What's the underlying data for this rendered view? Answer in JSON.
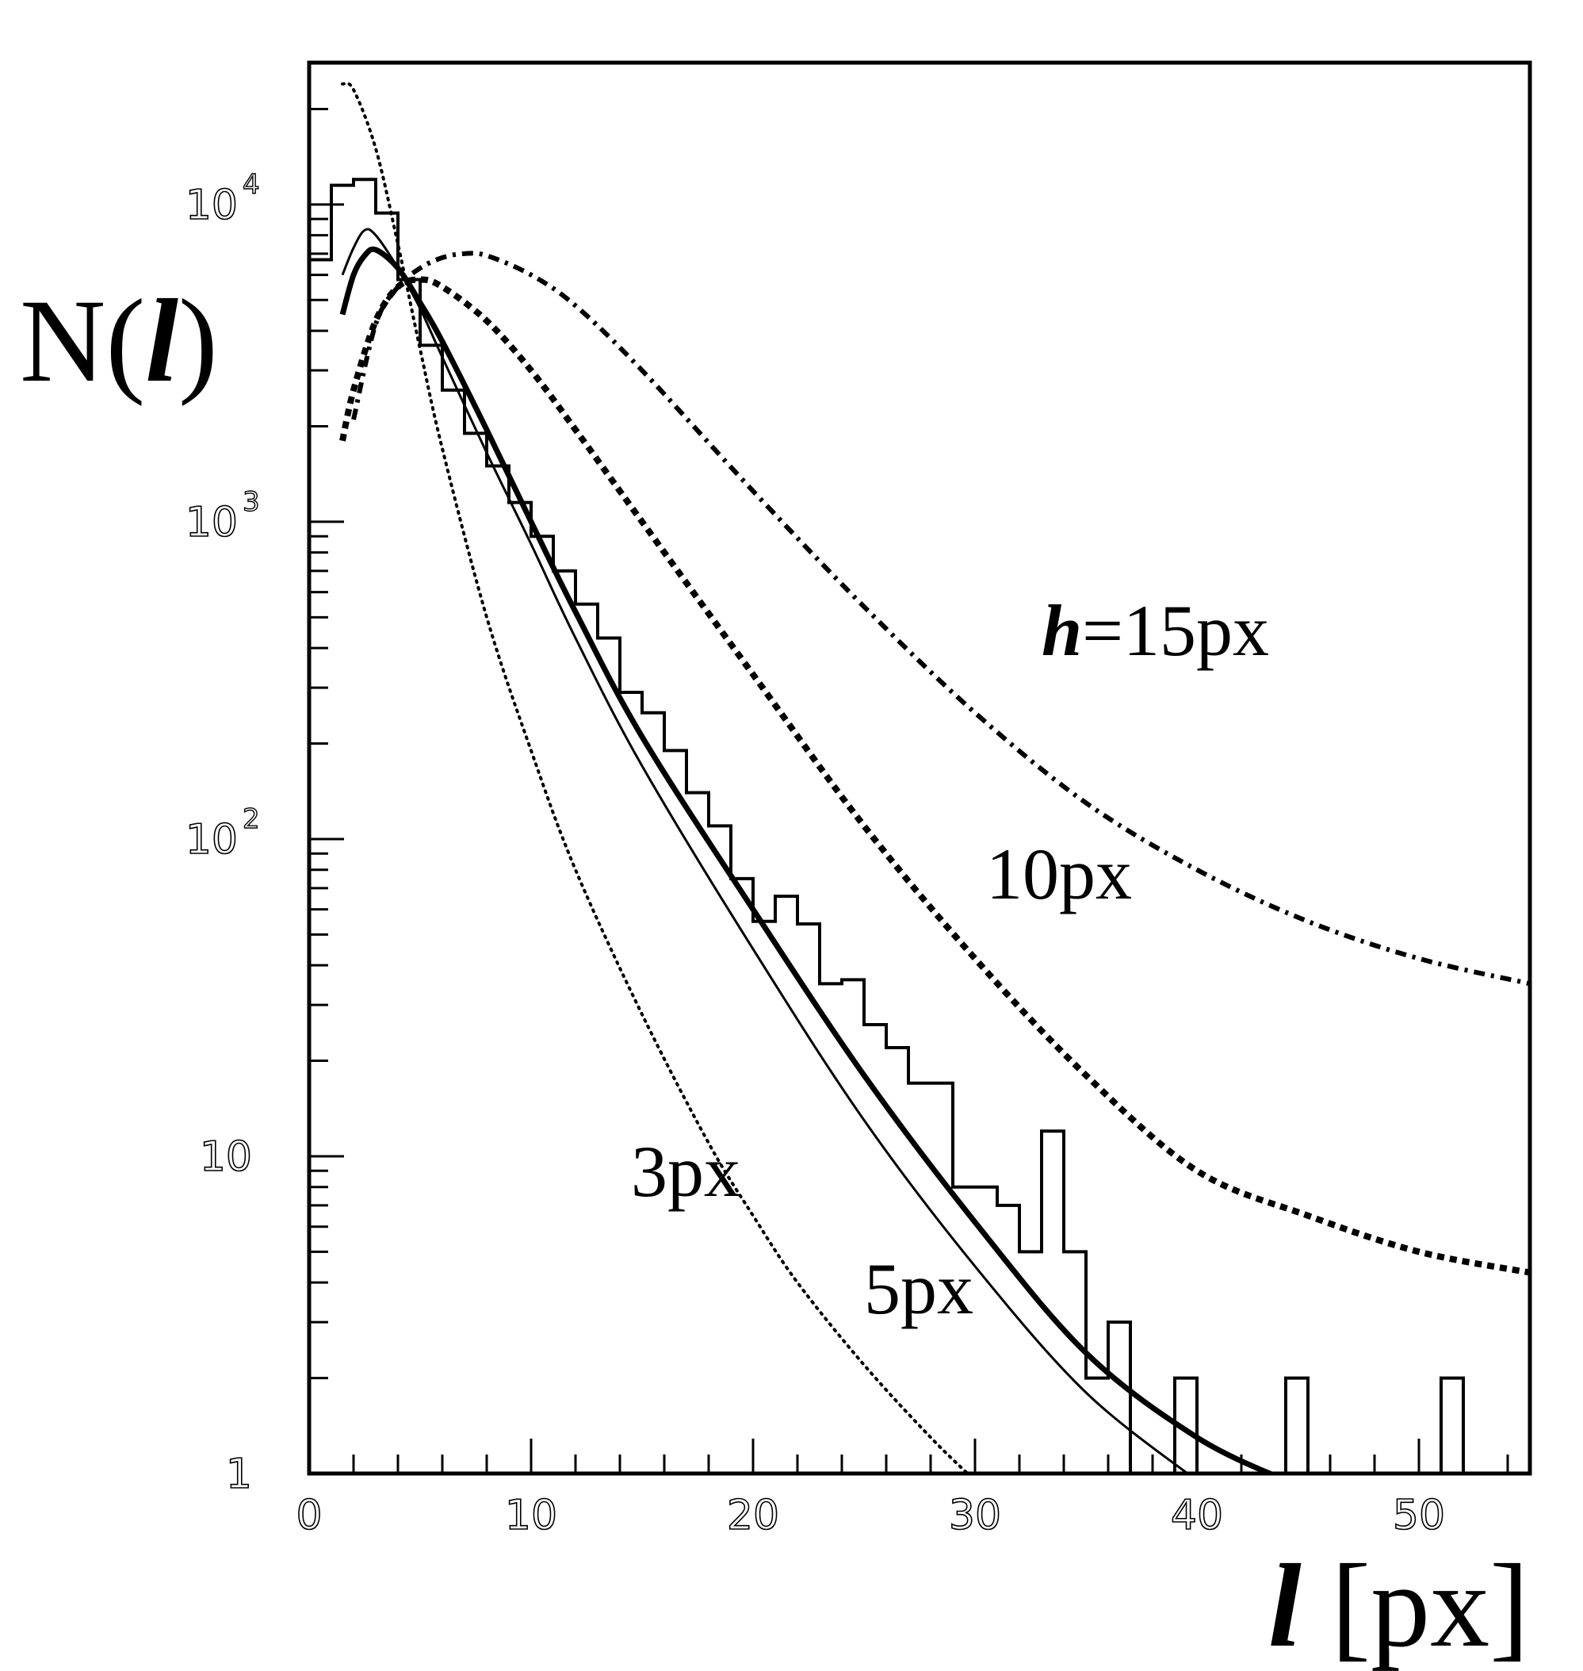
{
  "chart_data": {
    "type": "line",
    "title": "",
    "ylabel": {
      "prefix": "N(",
      "symbol": "l",
      "suffix": ")"
    },
    "xlabel": {
      "symbol": "l",
      "unit": " [px]"
    },
    "xlim": [
      0,
      55
    ],
    "ylim": [
      1,
      28000
    ],
    "yscale": "log",
    "grid": false,
    "x_ticks": [
      {
        "value": 0,
        "label": "0"
      },
      {
        "value": 10,
        "label": "10"
      },
      {
        "value": 20,
        "label": "20"
      },
      {
        "value": 30,
        "label": "30"
      },
      {
        "value": 40,
        "label": "40"
      },
      {
        "value": 50,
        "label": "50"
      }
    ],
    "y_ticks": [
      {
        "value": 1,
        "label": "1",
        "sup": ""
      },
      {
        "value": 10,
        "label": "10",
        "sup": ""
      },
      {
        "value": 100,
        "label": "10",
        "sup": "2"
      },
      {
        "value": 1000,
        "label": "10",
        "sup": "3"
      },
      {
        "value": 10000,
        "label": "10",
        "sup": "4"
      }
    ],
    "histogram": {
      "bin_width": 1,
      "bins": [
        {
          "x": 0,
          "y": 6700
        },
        {
          "x": 1,
          "y": 11500
        },
        {
          "x": 2,
          "y": 12000
        },
        {
          "x": 3,
          "y": 9400
        },
        {
          "x": 4,
          "y": 5800
        },
        {
          "x": 5,
          "y": 3600
        },
        {
          "x": 6,
          "y": 2600
        },
        {
          "x": 7,
          "y": 1900
        },
        {
          "x": 8,
          "y": 1500
        },
        {
          "x": 9,
          "y": 1150
        },
        {
          "x": 10,
          "y": 900
        },
        {
          "x": 11,
          "y": 700
        },
        {
          "x": 12,
          "y": 550
        },
        {
          "x": 13,
          "y": 430
        },
        {
          "x": 14,
          "y": 290
        },
        {
          "x": 15,
          "y": 250
        },
        {
          "x": 16,
          "y": 190
        },
        {
          "x": 17,
          "y": 140
        },
        {
          "x": 18,
          "y": 110
        },
        {
          "x": 19,
          "y": 75
        },
        {
          "x": 20,
          "y": 55
        },
        {
          "x": 21,
          "y": 66
        },
        {
          "x": 22,
          "y": 54
        },
        {
          "x": 23,
          "y": 35
        },
        {
          "x": 24,
          "y": 36
        },
        {
          "x": 25,
          "y": 26
        },
        {
          "x": 26,
          "y": 22
        },
        {
          "x": 27,
          "y": 17
        },
        {
          "x": 28,
          "y": 17
        },
        {
          "x": 29,
          "y": 8
        },
        {
          "x": 30,
          "y": 8
        },
        {
          "x": 31,
          "y": 7
        },
        {
          "x": 32,
          "y": 5
        },
        {
          "x": 33,
          "y": 12
        },
        {
          "x": 34,
          "y": 5
        },
        {
          "x": 35,
          "y": 2
        },
        {
          "x": 36,
          "y": 3
        },
        {
          "x": 37,
          "y": 1
        },
        {
          "x": 38,
          "y": 1
        },
        {
          "x": 39,
          "y": 2
        },
        {
          "x": 40,
          "y": 1
        },
        {
          "x": 41,
          "y": 1
        },
        {
          "x": 42,
          "y": 1
        },
        {
          "x": 43,
          "y": 1
        },
        {
          "x": 44,
          "y": 2
        },
        {
          "x": 45,
          "y": 1
        },
        {
          "x": 46,
          "y": 1
        },
        {
          "x": 47,
          "y": 1
        },
        {
          "x": 48,
          "y": 1
        },
        {
          "x": 49,
          "y": 1
        },
        {
          "x": 50,
          "y": 1
        },
        {
          "x": 51,
          "y": 2
        }
      ]
    },
    "series": [
      {
        "label": "3px",
        "style": "dotted-thin",
        "points": [
          [
            1.5,
            24000
          ],
          [
            2,
            23000
          ],
          [
            3,
            15000
          ],
          [
            4,
            7500
          ],
          [
            5,
            3500
          ],
          [
            6,
            1700
          ],
          [
            8,
            500
          ],
          [
            10,
            190
          ],
          [
            12,
            80
          ],
          [
            15,
            28
          ],
          [
            18,
            11
          ],
          [
            20,
            6.5
          ],
          [
            22,
            4.0
          ],
          [
            25,
            2.2
          ],
          [
            28,
            1.3
          ],
          [
            30,
            0.95
          ]
        ]
      },
      {
        "label": "5px",
        "style": "solid-thin",
        "points": [
          [
            1.5,
            6000
          ],
          [
            2,
            7300
          ],
          [
            2.5,
            8300
          ],
          [
            3,
            8000
          ],
          [
            4,
            6300
          ],
          [
            5,
            4700
          ],
          [
            6,
            3300
          ],
          [
            8,
            1650
          ],
          [
            10,
            850
          ],
          [
            12,
            430
          ],
          [
            15,
            170
          ],
          [
            20,
            45
          ],
          [
            25,
            13
          ],
          [
            30,
            4.5
          ],
          [
            35,
            1.8
          ],
          [
            40,
            0.95
          ]
        ]
      },
      {
        "label": "",
        "style": "solid-thick",
        "points": [
          [
            1.5,
            4500
          ],
          [
            2,
            6000
          ],
          [
            2.5,
            6900
          ],
          [
            3,
            7200
          ],
          [
            4,
            6300
          ],
          [
            5,
            4900
          ],
          [
            6,
            3700
          ],
          [
            8,
            1950
          ],
          [
            10,
            1000
          ],
          [
            12,
            520
          ],
          [
            15,
            210
          ],
          [
            20,
            60
          ],
          [
            25,
            18
          ],
          [
            30,
            6.2
          ],
          [
            35,
            2.4
          ],
          [
            40,
            1.3
          ],
          [
            44,
            0.95
          ]
        ]
      },
      {
        "label": "10px",
        "style": "dashed-thick",
        "points": [
          [
            1.5,
            1800
          ],
          [
            2,
            2600
          ],
          [
            3,
            4300
          ],
          [
            4,
            5500
          ],
          [
            5,
            5800
          ],
          [
            6,
            5500
          ],
          [
            8,
            4300
          ],
          [
            10,
            3000
          ],
          [
            12,
            1950
          ],
          [
            15,
            1000
          ],
          [
            20,
            330
          ],
          [
            25,
            110
          ],
          [
            30,
            42
          ],
          [
            35,
            18
          ],
          [
            40,
            9
          ],
          [
            45,
            6.5
          ],
          [
            50,
            5.0
          ],
          [
            55,
            4.3
          ]
        ]
      },
      {
        "label": "h=15px",
        "style": "dash-dot-thick",
        "points": [
          [
            2,
            2100
          ],
          [
            3,
            4200
          ],
          [
            4,
            5500
          ],
          [
            5,
            6300
          ],
          [
            6,
            6800
          ],
          [
            7,
            7000
          ],
          [
            8,
            6900
          ],
          [
            10,
            6000
          ],
          [
            12,
            4800
          ],
          [
            15,
            3000
          ],
          [
            20,
            1250
          ],
          [
            25,
            540
          ],
          [
            30,
            250
          ],
          [
            35,
            130
          ],
          [
            40,
            80
          ],
          [
            45,
            55
          ],
          [
            50,
            42
          ],
          [
            55,
            35
          ]
        ]
      }
    ],
    "annotations": [
      {
        "text": "3px",
        "x": 14.5,
        "y": 7.5
      },
      {
        "text": "5px",
        "x": 25,
        "y": 3.2
      },
      {
        "text": "10px",
        "x": 30.5,
        "y": 65
      },
      {
        "symbol": "h",
        "text": "=15px",
        "x": 33,
        "y": 380
      }
    ]
  }
}
